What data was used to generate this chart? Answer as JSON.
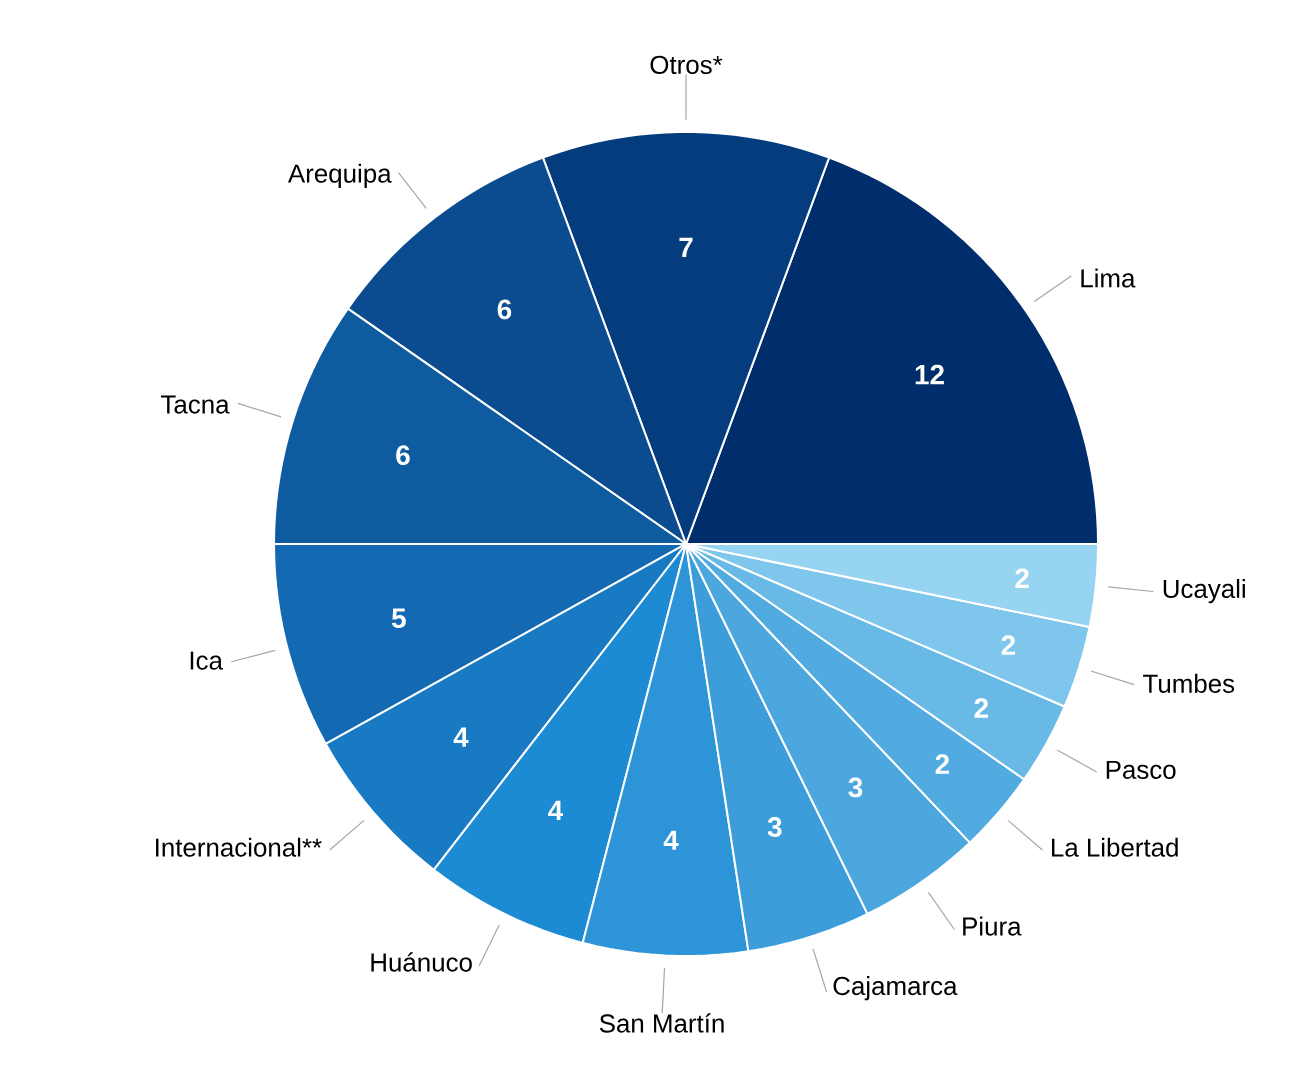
{
  "chart_data": {
    "type": "pie",
    "categories": [
      "Lima",
      "Otros*",
      "Arequipa",
      "Tacna",
      "Ica",
      "Internacional**",
      "Huánuco",
      "San Martín",
      "Cajamarca",
      "Piura",
      "La Libertad",
      "Pasco",
      "Tumbes",
      "Ucayali"
    ],
    "values": [
      12,
      7,
      6,
      6,
      5,
      4,
      4,
      4,
      3,
      3,
      2,
      2,
      2,
      2
    ],
    "colors": [
      "#002d6b",
      "#053c7d",
      "#0a4c8f",
      "#0f5ba0",
      "#136ab2",
      "#187ac3",
      "#1d8bd4",
      "#2d94d8",
      "#3d9ddb",
      "#4da7df",
      "#52abe0",
      "#68b9e6",
      "#7ec6ec",
      "#97d4f2"
    ],
    "data_labels": true
  }
}
